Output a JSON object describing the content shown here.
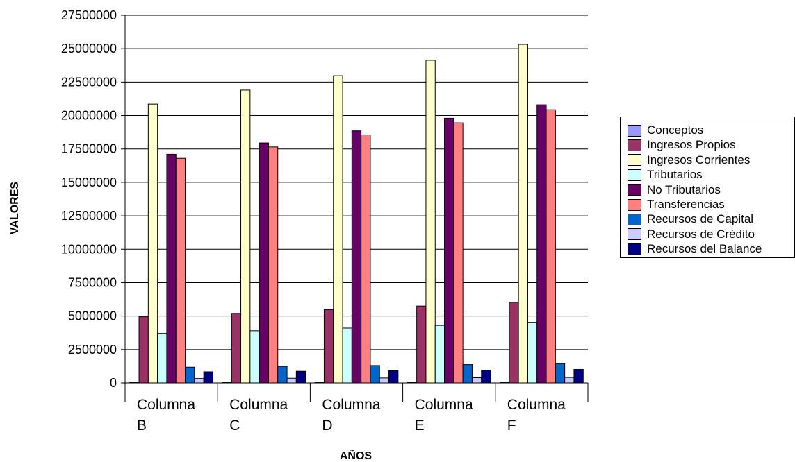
{
  "chart_data": {
    "type": "bar",
    "title": "",
    "xlabel": "AÑOS",
    "ylabel": "VALORES",
    "ylim": [
      0,
      27500000
    ],
    "yticks": [
      "0",
      "2500000",
      "5000000",
      "7500000",
      "10000000",
      "12500000",
      "15000000",
      "17500000",
      "20000000",
      "22500000",
      "25000000",
      "27500000"
    ],
    "categories": [
      [
        "Columna",
        "B"
      ],
      [
        "Columna",
        "C"
      ],
      [
        "Columna",
        "D"
      ],
      [
        "Columna",
        "E"
      ],
      [
        "Columna",
        "F"
      ]
    ],
    "grid": true,
    "legend_position": "right",
    "series": [
      {
        "name": "Conceptos",
        "color": "#9999ff",
        "values": [
          0,
          0,
          0,
          0,
          0
        ]
      },
      {
        "name": "Ingresos Propios",
        "color": "#993366",
        "values": [
          4950000,
          5200000,
          5480000,
          5750000,
          6030000
        ]
      },
      {
        "name": "Ingresos Corrientes",
        "color": "#ffffcc",
        "values": [
          20850000,
          21900000,
          22980000,
          24130000,
          25320000
        ]
      },
      {
        "name": "Tributarios",
        "color": "#ccffff",
        "values": [
          3700000,
          3900000,
          4100000,
          4300000,
          4530000
        ]
      },
      {
        "name": "No Tributarios",
        "color": "#660066",
        "values": [
          17100000,
          17950000,
          18850000,
          19800000,
          20800000
        ]
      },
      {
        "name": "Transferencias",
        "color": "#ff8080",
        "values": [
          16800000,
          17650000,
          18550000,
          19450000,
          20430000
        ]
      },
      {
        "name": "Recursos de Capital",
        "color": "#0066cc",
        "values": [
          1180000,
          1240000,
          1300000,
          1370000,
          1440000
        ]
      },
      {
        "name": "Recursos de Crédito",
        "color": "#ccccff",
        "values": [
          330000,
          350000,
          370000,
          390000,
          410000
        ]
      },
      {
        "name": "Recursos del Balance",
        "color": "#000080",
        "values": [
          830000,
          870000,
          920000,
          960000,
          1010000
        ]
      }
    ]
  }
}
